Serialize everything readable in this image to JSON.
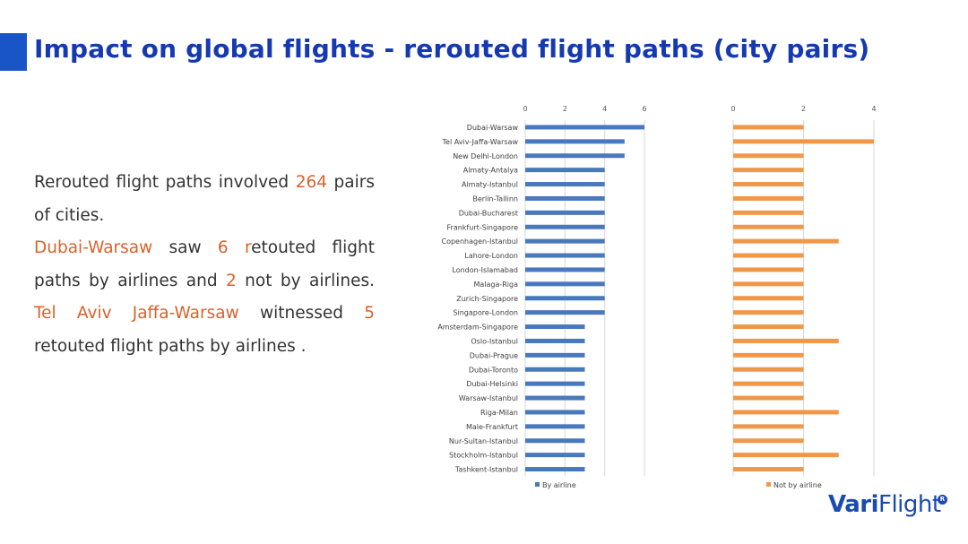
{
  "title": "Impact on global flights - rerouted flight paths (city pairs)",
  "text": {
    "p1_a": "Rerouted flight paths involved ",
    "p1_num": "264",
    "p1_b": " pairs of cities.",
    "p2_pair1": "Dubai-Warsaw",
    "p2_a": " saw ",
    "p2_num1": "6",
    "p2_b_r": " r",
    "p2_b": "etouted flight paths by airlines and ",
    "p2_num2": "2",
    "p2_c": " not by airlines. ",
    "p2_pair2": "Tel Aviv Jaffa-Warsaw",
    "p2_d": " witnessed ",
    "p2_num3": "5",
    "p2_e": " retouted flight paths by airlines ."
  },
  "logo": {
    "part1": "Vari",
    "part2": "Flight",
    "mark": "R"
  },
  "colors": {
    "title": "#1539b0",
    "accent": "#1a55c8",
    "highlight": "#d9622b",
    "series_airline": "#4a78bd",
    "series_not_airline": "#f0984a",
    "logo": "#1a4bb0"
  },
  "chart_data": [
    {
      "type": "bar",
      "orientation": "horizontal",
      "categories": [
        "Dubai-Warsaw",
        "Tel Aviv-Jaffa-Warsaw",
        "New Delhi-London",
        "Almaty-Antalya",
        "Almaty-Istanbul",
        "Berlin-Tallinn",
        "Dubai-Bucharest",
        "Frankfurt-Singapore",
        "Copenhagen-Istanbul",
        "Lahore-London",
        "London-Islamabad",
        "Malaga-Riga",
        "Zurich-Singapore",
        "Singapore-London",
        "Amsterdam-Singapore",
        "Oslo-Istanbul",
        "Dubai-Prague",
        "Dubai-Toronto",
        "Dubai-Helsinki",
        "Warsaw-Istanbul",
        "Riga-Milan",
        "Male-Frankfurt",
        "Nur-Sultan-Istanbul",
        "Stockholm-Istanbul",
        "Tashkent-Istanbul"
      ],
      "series": [
        {
          "name": "By airline",
          "values": [
            6,
            5,
            5,
            4,
            4,
            4,
            4,
            4,
            4,
            4,
            4,
            4,
            4,
            4,
            3,
            3,
            3,
            3,
            3,
            3,
            3,
            3,
            3,
            3,
            3
          ]
        }
      ],
      "xlim": [
        0,
        6
      ],
      "ticks": [
        "0",
        "2",
        "4",
        "6"
      ],
      "grid": true,
      "legend": "bottom"
    },
    {
      "type": "bar",
      "orientation": "horizontal",
      "categories": [
        "Dubai-Warsaw",
        "Tel Aviv-Jaffa-Warsaw",
        "New Delhi-London",
        "Almaty-Antalya",
        "Almaty-Istanbul",
        "Berlin-Tallinn",
        "Dubai-Bucharest",
        "Frankfurt-Singapore",
        "Copenhagen-Istanbul",
        "Lahore-London",
        "London-Islamabad",
        "Malaga-Riga",
        "Zurich-Singapore",
        "Singapore-London",
        "Amsterdam-Singapore",
        "Oslo-Istanbul",
        "Dubai-Prague",
        "Dubai-Toronto",
        "Dubai-Helsinki",
        "Warsaw-Istanbul",
        "Riga-Milan",
        "Male-Frankfurt",
        "Nur-Sultan-Istanbul",
        "Stockholm-Istanbul",
        "Tashkent-Istanbul"
      ],
      "series": [
        {
          "name": "Not by airline",
          "values": [
            2,
            4,
            2,
            2,
            2,
            2,
            2,
            2,
            3,
            2,
            2,
            2,
            2,
            2,
            2,
            3,
            2,
            2,
            2,
            2,
            3,
            2,
            2,
            3,
            2
          ]
        }
      ],
      "xlim": [
        0,
        4
      ],
      "ticks": [
        "0",
        "2",
        "4"
      ],
      "grid": true,
      "legend": "bottom"
    }
  ]
}
